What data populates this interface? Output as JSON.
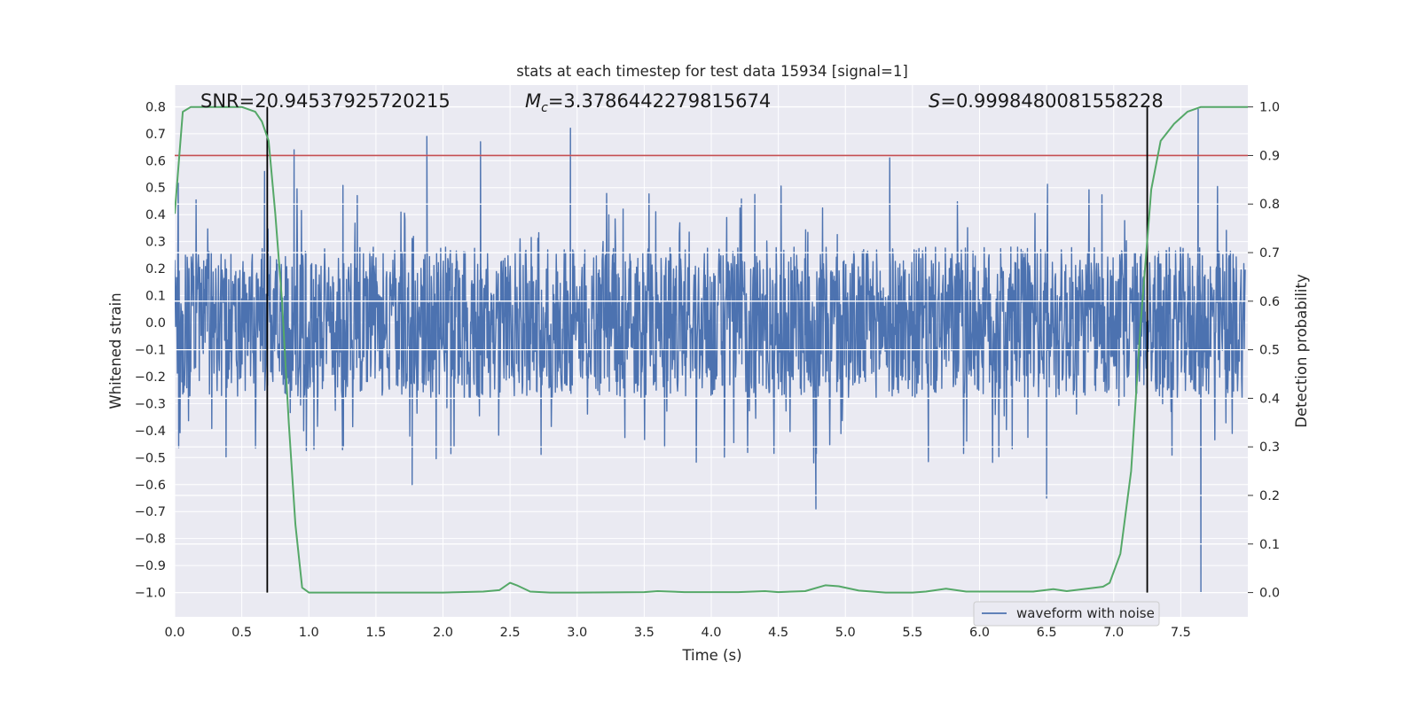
{
  "chart_data": {
    "type": "line",
    "title": "stats at each timestep for test data 15934 [signal=1]",
    "xlabel": "Time (s)",
    "ylabel_left": "Whitened strain",
    "ylabel_right": "Detection probability",
    "xlim": [
      0,
      8
    ],
    "ylim_left": [
      -1.09,
      0.88
    ],
    "ylim_right": [
      -0.05,
      1.045
    ],
    "x_ticks": [
      "0.0",
      "0.5",
      "1.0",
      "1.5",
      "2.0",
      "2.5",
      "3.0",
      "3.5",
      "4.0",
      "4.5",
      "5.0",
      "5.5",
      "6.0",
      "6.5",
      "7.0",
      "7.5"
    ],
    "x_tick_values": [
      0,
      0.5,
      1,
      1.5,
      2,
      2.5,
      3,
      3.5,
      4,
      4.5,
      5,
      5.5,
      6,
      6.5,
      7,
      7.5
    ],
    "y_left_ticks": [
      "0.8",
      "0.7",
      "0.6",
      "0.5",
      "0.4",
      "0.3",
      "0.2",
      "0.1",
      "0.0",
      "−0.1",
      "−0.2",
      "−0.3",
      "−0.4",
      "−0.5",
      "−0.6",
      "−0.7",
      "−0.8",
      "−0.9",
      "−1.0"
    ],
    "y_left_tick_values": [
      0.8,
      0.7,
      0.6,
      0.5,
      0.4,
      0.3,
      0.2,
      0.1,
      0,
      -0.1,
      -0.2,
      -0.3,
      -0.4,
      -0.5,
      -0.6,
      -0.7,
      -0.8,
      -0.9,
      -1.0
    ],
    "y_right_ticks": [
      "1.0",
      "0.9",
      "0.8",
      "0.7",
      "0.6",
      "0.5",
      "0.4",
      "0.3",
      "0.2",
      "0.1",
      "0.0"
    ],
    "y_right_tick_values": [
      1.0,
      0.9,
      0.8,
      0.7,
      0.6,
      0.5,
      0.4,
      0.3,
      0.2,
      0.1,
      0.0
    ],
    "annotations": {
      "snr": "SNR=20.94537925720215",
      "mc_symbol": "M",
      "mc_sub": "c",
      "mc_value": "=3.3786442279815674",
      "s_symbol": "S",
      "s_value": "=0.9998480081558228"
    },
    "threshold_probability": 0.9,
    "vertical_markers": [
      0.69,
      7.25
    ],
    "legend": {
      "label": "waveform with noise",
      "placement": "lower-right"
    },
    "colors": {
      "waveform": "#4c72b0",
      "probability": "#55a868",
      "threshold": "#c44e52",
      "markers": "#000000",
      "axes_bg": "#eaeaf2",
      "grid": "#ffffff"
    },
    "series": [
      {
        "name": "waveform with noise",
        "axis": "left",
        "description": "whitened strain, noise-dominated",
        "envelope_typical": [
          -0.3,
          0.3
        ],
        "peak_values": [
          {
            "x": 0.67,
            "y": 0.56
          },
          {
            "x": 0.89,
            "y": 0.64
          },
          {
            "x": 1.88,
            "y": 0.69
          },
          {
            "x": 2.28,
            "y": 0.67
          },
          {
            "x": 2.95,
            "y": 0.72
          },
          {
            "x": 5.33,
            "y": 0.61
          },
          {
            "x": 7.63,
            "y": 0.79
          },
          {
            "x": 4.78,
            "y": -0.69
          },
          {
            "x": 6.5,
            "y": -0.65
          },
          {
            "x": 7.65,
            "y": -1.0
          },
          {
            "x": 1.77,
            "y": -0.6
          }
        ]
      },
      {
        "name": "detection probability",
        "axis": "right",
        "x": [
          0.0,
          0.06,
          0.12,
          0.2,
          0.3,
          0.4,
          0.5,
          0.6,
          0.65,
          0.7,
          0.75,
          0.8,
          0.85,
          0.9,
          0.95,
          1.0,
          1.2,
          1.5,
          2.0,
          2.3,
          2.42,
          2.5,
          2.55,
          2.65,
          2.8,
          3.0,
          3.5,
          3.6,
          3.8,
          4.0,
          4.2,
          4.4,
          4.5,
          4.7,
          4.85,
          4.95,
          5.1,
          5.3,
          5.5,
          5.6,
          5.75,
          5.9,
          6.0,
          6.4,
          6.55,
          6.65,
          6.8,
          6.92,
          6.97,
          7.05,
          7.13,
          7.2,
          7.28,
          7.35,
          7.45,
          7.55,
          7.65,
          8.0
        ],
        "y": [
          0.78,
          0.99,
          1.0,
          1.0,
          1.0,
          1.0,
          1.0,
          0.99,
          0.97,
          0.93,
          0.78,
          0.6,
          0.35,
          0.14,
          0.01,
          0.0,
          0.0,
          0.0,
          0.0,
          0.002,
          0.005,
          0.02,
          0.015,
          0.002,
          0.0,
          0.0,
          0.001,
          0.003,
          0.001,
          0.001,
          0.001,
          0.003,
          0.001,
          0.003,
          0.015,
          0.013,
          0.004,
          0.0,
          0.0,
          0.002,
          0.008,
          0.002,
          0.002,
          0.002,
          0.007,
          0.003,
          0.008,
          0.012,
          0.02,
          0.08,
          0.25,
          0.55,
          0.83,
          0.93,
          0.965,
          0.99,
          1.0,
          1.0
        ]
      }
    ]
  }
}
